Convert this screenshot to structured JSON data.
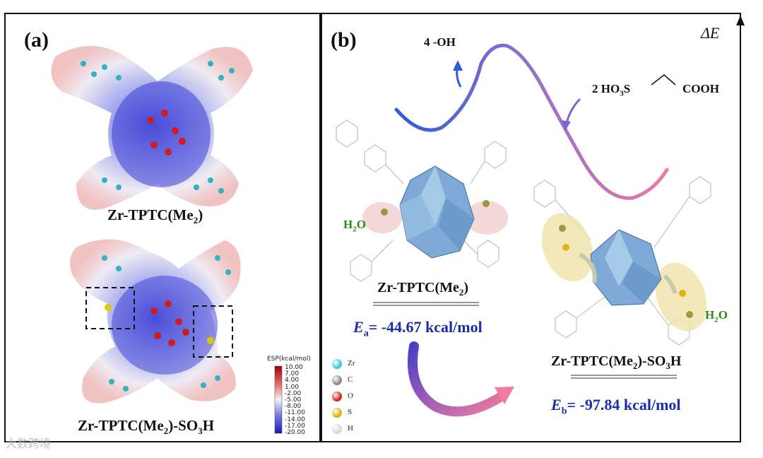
{
  "panel_a": {
    "tag": "(a)",
    "caption_top_main": "Zr-TPTC(Me",
    "caption_top_sub": "2",
    "caption_top_end": ")",
    "caption_bottom_main": "Zr-TPTC(Me",
    "caption_bottom_sub": "2",
    "caption_bottom_mid": ")-SO",
    "caption_bottom_sub2": "3",
    "caption_bottom_end": "H",
    "colorbar": {
      "title": "ESP(kcal/mol)",
      "ticks": [
        "10.00",
        "7.00",
        "4.00",
        "1.00",
        "-2.00",
        "-5.00",
        "-8.00",
        "-11.00",
        "-14.00",
        "-17.00",
        "-20.00"
      ]
    }
  },
  "panel_b": {
    "tag": "(b)",
    "axis_label": "ΔE",
    "oh_label": "4 -OH",
    "acid_label_left": "2 HO",
    "acid_label_sub": "3",
    "acid_label_s": "S",
    "acid_label_right": "COOH",
    "water_left": "H",
    "water_left_sub": "2",
    "water_left_end": "O",
    "water_right": "H",
    "water_right_sub": "2",
    "water_right_end": "O",
    "mid_caption_main": "Zr-TPTC(Me",
    "mid_caption_sub": "2",
    "mid_caption_end": ")",
    "right_caption_main": "Zr-TPTC(Me",
    "right_caption_sub": "2",
    "right_caption_mid": ")-SO",
    "right_caption_sub2": "3",
    "right_caption_end": "H",
    "ea_symbol": "E",
    "ea_sub": "a",
    "ea_value": "= -44.67 kcal/mol",
    "eb_symbol": "E",
    "eb_sub": "b",
    "eb_value": "= -97.84 kcal/mol",
    "legend": [
      {
        "label": "Zr",
        "color": "#3ec9d6"
      },
      {
        "label": "C",
        "color": "#8a8a8a"
      },
      {
        "label": "O",
        "color": "#d91e1e"
      },
      {
        "label": "S",
        "color": "#e0b400"
      },
      {
        "label": "H",
        "color": "#d8d8d8"
      }
    ]
  },
  "watermark": "大数跨境"
}
